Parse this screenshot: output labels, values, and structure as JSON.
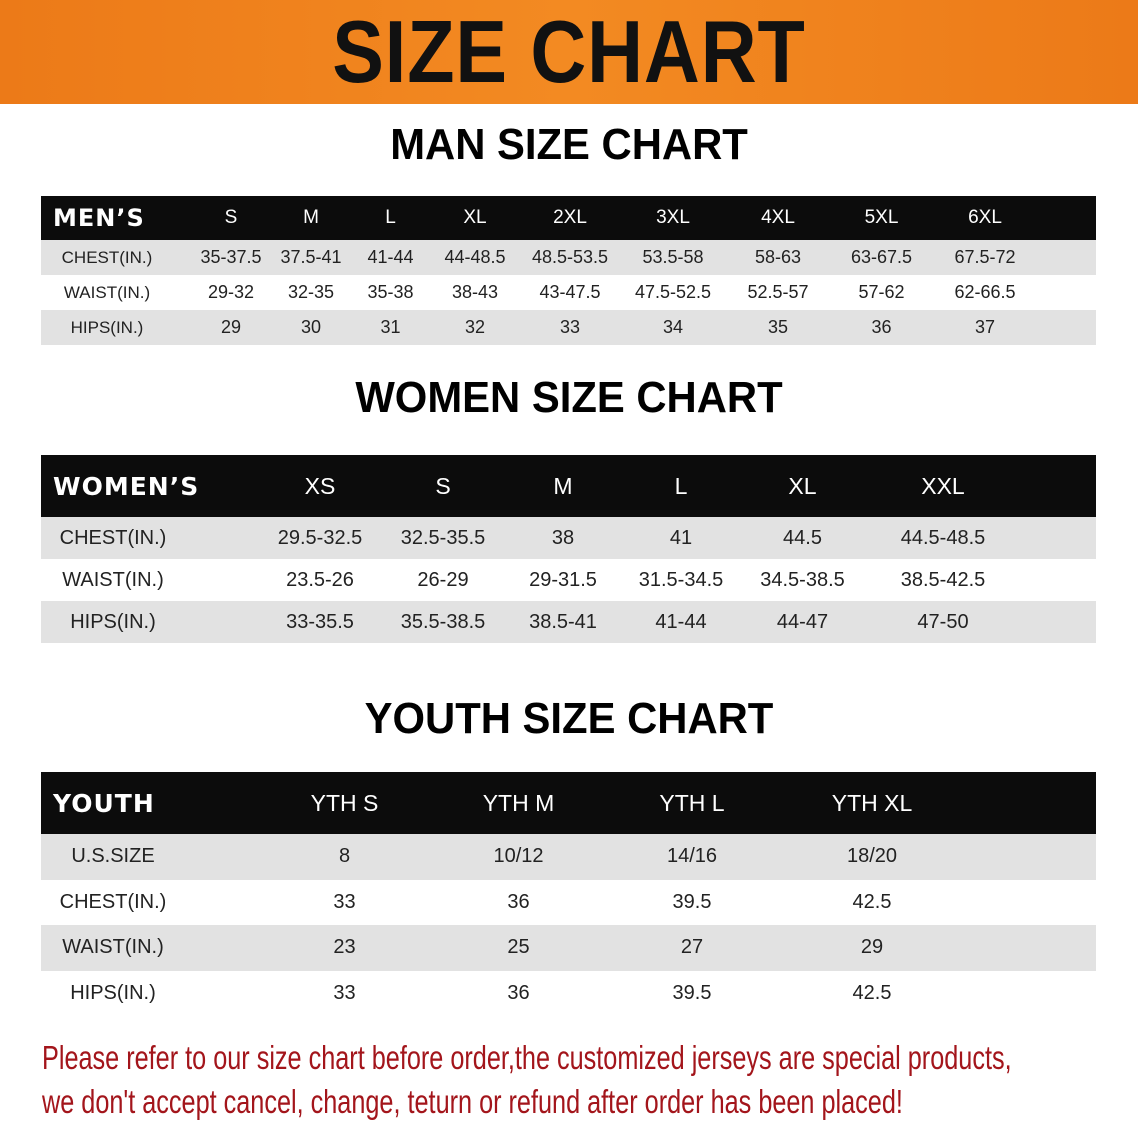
{
  "banner_title": "SIZE CHART",
  "men": {
    "title": "MAN SIZE CHART",
    "header": [
      "MEN’S",
      "S",
      "M",
      "L",
      "XL",
      "2XL",
      "3XL",
      "4XL",
      "5XL",
      "6XL"
    ],
    "rows": [
      [
        "CHEST(IN.)",
        "35-37.5",
        "37.5-41",
        "41-44",
        "44-48.5",
        "48.5-53.5",
        "53.5-58",
        "58-63",
        "63-67.5",
        "67.5-72"
      ],
      [
        "WAIST(IN.)",
        "29-32",
        "32-35",
        "35-38",
        "38-43",
        "43-47.5",
        "47.5-52.5",
        "52.5-57",
        "57-62",
        "62-66.5"
      ],
      [
        "HIPS(IN.)",
        "29",
        "30",
        "31",
        "32",
        "33",
        "34",
        "35",
        "36",
        "37"
      ]
    ]
  },
  "women": {
    "title": "WOMEN SIZE CHART",
    "header": [
      "WOMEN’S",
      "XS",
      "S",
      "M",
      "L",
      "XL",
      "XXL"
    ],
    "rows": [
      [
        "CHEST(IN.)",
        "29.5-32.5",
        "32.5-35.5",
        "38",
        "41",
        "44.5",
        "44.5-48.5"
      ],
      [
        "WAIST(IN.)",
        "23.5-26",
        "26-29",
        "29-31.5",
        "31.5-34.5",
        "34.5-38.5",
        "38.5-42.5"
      ],
      [
        "HIPS(IN.)",
        "33-35.5",
        "35.5-38.5",
        "38.5-41",
        "41-44",
        "44-47",
        "47-50"
      ]
    ]
  },
  "youth": {
    "title": "YOUTH SIZE CHART",
    "header": [
      "YOUTH",
      "YTH S",
      "YTH M",
      "YTH L",
      "YTH XL"
    ],
    "rows": [
      [
        "U.S.SIZE",
        "8",
        "10/12",
        "14/16",
        "18/20"
      ],
      [
        "CHEST(IN.)",
        "33",
        "36",
        "39.5",
        "42.5"
      ],
      [
        "WAIST(IN.)",
        "23",
        "25",
        "27",
        "29"
      ],
      [
        "HIPS(IN.)",
        "33",
        "36",
        "39.5",
        "42.5"
      ]
    ]
  },
  "notice": {
    "line1": "Please refer to our size chart before order,the customized jerseys are special products,",
    "line2": "we don't accept cancel, change, teturn or refund after order has been placed!"
  },
  "colors": {
    "banner": "#f08020",
    "notice": "#a3151b",
    "header_row": "#0c0c0c",
    "stripe": "#e2e2e2"
  }
}
